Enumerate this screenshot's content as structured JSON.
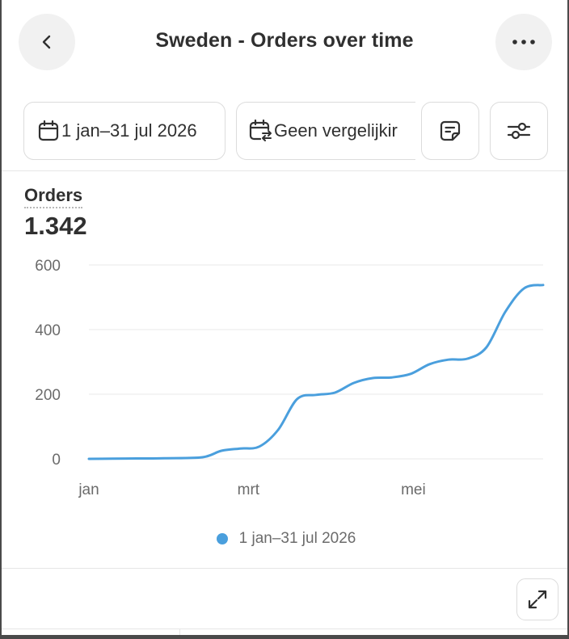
{
  "header": {
    "title": "Sweden - Orders over time",
    "back_icon": "chevron-left-icon",
    "more_icon": "ellipsis-icon"
  },
  "filters": {
    "date_range": "1 jan–31 jul 2026",
    "comparison": "Geen vergelijkir",
    "date_icon": "calendar-icon",
    "comparison_icon": "calendar-compare-icon",
    "note_icon": "note-icon",
    "settings_icon": "sliders-icon"
  },
  "metric": {
    "label": "Orders",
    "value": "1.342"
  },
  "chart_data": {
    "type": "line",
    "title": "",
    "xlabel": "",
    "ylabel": "",
    "ylim": [
      0,
      600
    ],
    "yticks": [
      0,
      200,
      400,
      600
    ],
    "x_tick_labels": [
      "jan",
      "mrt",
      "mei"
    ],
    "grid": true,
    "legend_position": "bottom",
    "series": [
      {
        "name": "1 jan–31 jul 2026",
        "color": "#4a9fdd",
        "points": [
          {
            "x": "2026-01-01",
            "y": 0
          },
          {
            "x": "2026-01-15",
            "y": 1
          },
          {
            "x": "2026-01-29",
            "y": 2
          },
          {
            "x": "2026-02-12",
            "y": 5
          },
          {
            "x": "2026-02-19",
            "y": 25
          },
          {
            "x": "2026-02-26",
            "y": 32
          },
          {
            "x": "2026-03-05",
            "y": 38
          },
          {
            "x": "2026-03-12",
            "y": 90
          },
          {
            "x": "2026-03-19",
            "y": 185
          },
          {
            "x": "2026-03-26",
            "y": 198
          },
          {
            "x": "2026-04-02",
            "y": 205
          },
          {
            "x": "2026-04-09",
            "y": 235
          },
          {
            "x": "2026-04-16",
            "y": 250
          },
          {
            "x": "2026-04-23",
            "y": 252
          },
          {
            "x": "2026-04-30",
            "y": 263
          },
          {
            "x": "2026-05-07",
            "y": 293
          },
          {
            "x": "2026-05-14",
            "y": 307
          },
          {
            "x": "2026-05-21",
            "y": 310
          },
          {
            "x": "2026-05-28",
            "y": 345
          },
          {
            "x": "2026-06-04",
            "y": 455
          },
          {
            "x": "2026-06-11",
            "y": 528
          },
          {
            "x": "2026-06-18",
            "y": 538
          }
        ]
      }
    ]
  },
  "legend": {
    "label": "1 jan–31 jul 2026",
    "color": "#4a9fdd"
  },
  "footer": {
    "expand_icon": "expand-icon"
  }
}
